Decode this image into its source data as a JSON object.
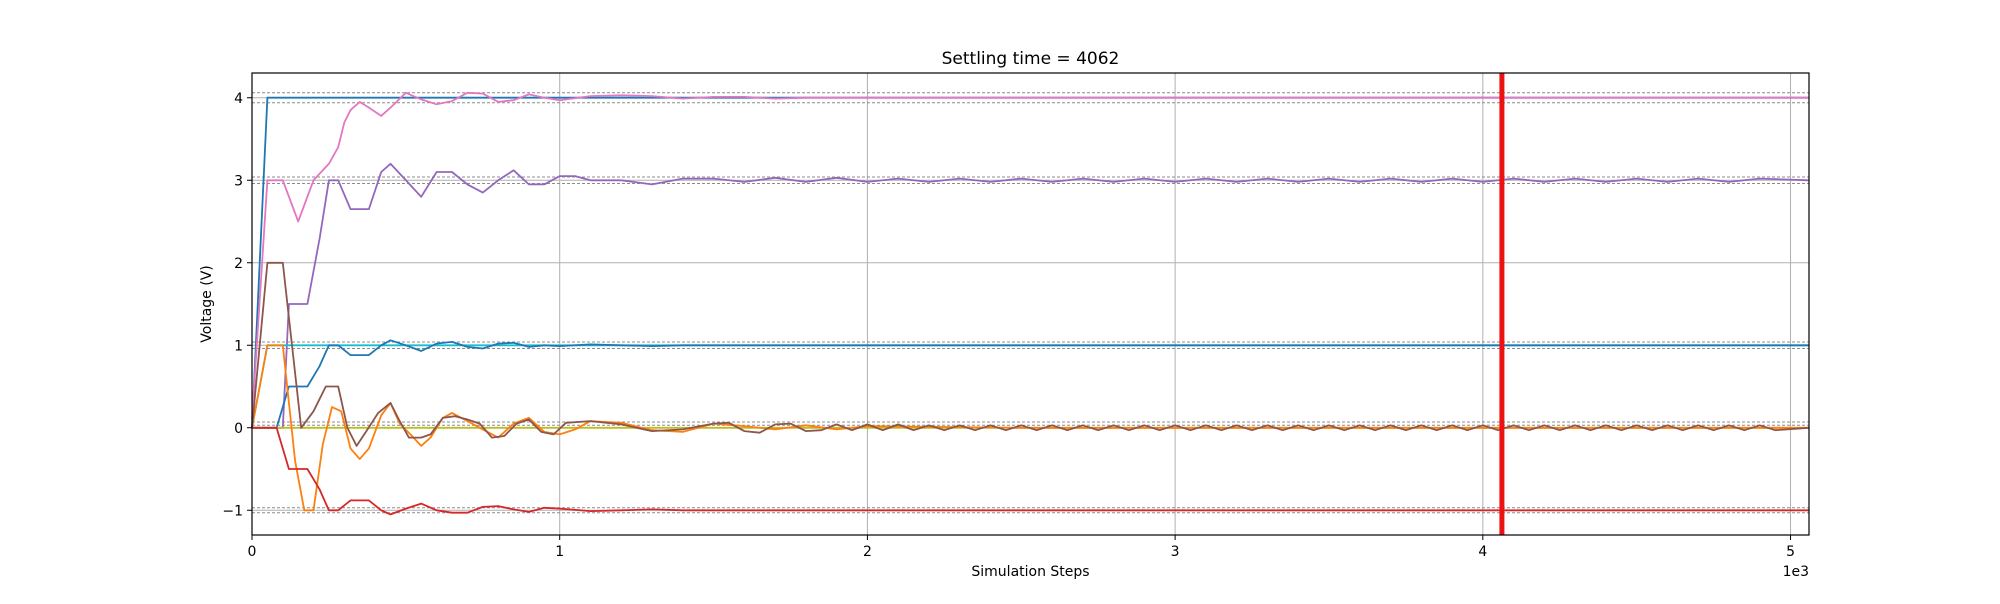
{
  "chart_data": {
    "type": "line",
    "title": "Settling time = 4062",
    "xlabel": "Simulation Steps",
    "ylabel": "Voltage (V)",
    "x_offset_label": "1e3",
    "xlim": [
      0,
      5.06
    ],
    "ylim": [
      -1.3,
      4.3
    ],
    "x_ticks": [
      0,
      1,
      2,
      3,
      4,
      5
    ],
    "x_tick_labels": [
      "0",
      "1",
      "2",
      "3",
      "4",
      "5"
    ],
    "y_ticks": [
      -1,
      0,
      1,
      2,
      3,
      4
    ],
    "y_tick_labels": [
      "−1",
      "0",
      "1",
      "2",
      "3",
      "4"
    ],
    "grid": true,
    "settling_time": 4.062,
    "settling_line_color": "#ee1111",
    "tolerance_lines": [
      -1.03,
      -0.97,
      0.03,
      0.07,
      0.96,
      1.04,
      2.96,
      3.04,
      3.94,
      4.06
    ],
    "series": [
      {
        "color": "#1f77b4",
        "x": [
          0,
          0.05,
          0.08,
          5.06
        ],
        "y": [
          0,
          4,
          4,
          4
        ]
      },
      {
        "color": "#e377c2",
        "x": [
          0,
          0.05,
          0.1,
          0.15,
          0.2,
          0.25,
          0.28,
          0.3,
          0.32,
          0.35,
          0.38,
          0.42,
          0.45,
          0.5,
          0.55,
          0.6,
          0.65,
          0.7,
          0.75,
          0.8,
          0.85,
          0.9,
          0.95,
          1.0,
          1.1,
          1.2,
          1.3,
          1.4,
          1.5,
          1.6,
          1.7,
          1.8,
          1.9,
          2.0,
          2.5,
          3.0,
          3.5,
          4.0,
          4.5,
          5.06
        ],
        "y": [
          0.1,
          3.0,
          3.0,
          2.5,
          3.0,
          3.2,
          3.4,
          3.7,
          3.85,
          3.95,
          3.88,
          3.78,
          3.88,
          4.06,
          3.98,
          3.92,
          3.96,
          4.06,
          4.05,
          3.95,
          3.97,
          4.04,
          4.0,
          3.97,
          4.02,
          4.03,
          4.02,
          3.99,
          4.01,
          4.01,
          3.99,
          4.0,
          4.0,
          4.0,
          4.0,
          4.0,
          4.0,
          4.0,
          4.0,
          4.0
        ]
      },
      {
        "color": "#9467bd",
        "x": [
          0,
          0.05,
          0.1,
          0.12,
          0.15,
          0.18,
          0.22,
          0.25,
          0.28,
          0.32,
          0.35,
          0.38,
          0.42,
          0.45,
          0.5,
          0.55,
          0.6,
          0.65,
          0.7,
          0.75,
          0.8,
          0.85,
          0.9,
          0.95,
          1.0,
          1.05,
          1.1,
          1.2,
          1.3,
          1.4,
          1.5,
          1.6,
          1.7,
          1.8,
          1.9,
          2.0,
          2.1,
          2.2,
          2.3,
          2.4,
          2.5,
          2.6,
          2.7,
          2.8,
          2.9,
          3.0,
          3.1,
          3.2,
          3.3,
          3.4,
          3.5,
          3.6,
          3.7,
          3.8,
          3.9,
          4.0,
          4.1,
          4.2,
          4.3,
          4.4,
          4.5,
          4.6,
          4.7,
          4.8,
          4.9,
          5.06
        ],
        "y": [
          0,
          0,
          0,
          1.5,
          1.5,
          1.5,
          2.3,
          3.0,
          3.0,
          2.65,
          2.65,
          2.65,
          3.1,
          3.2,
          3.0,
          2.8,
          3.1,
          3.1,
          2.95,
          2.85,
          3.0,
          3.12,
          2.95,
          2.95,
          3.05,
          3.05,
          3.0,
          3.0,
          2.95,
          3.02,
          3.02,
          2.98,
          3.03,
          2.98,
          3.03,
          2.98,
          3.02,
          2.98,
          3.02,
          2.98,
          3.02,
          2.98,
          3.02,
          2.98,
          3.02,
          2.98,
          3.02,
          2.98,
          3.02,
          2.98,
          3.02,
          2.98,
          3.02,
          2.98,
          3.02,
          2.98,
          3.02,
          2.98,
          3.02,
          2.98,
          3.02,
          2.98,
          3.02,
          2.98,
          3.02,
          3.0
        ]
      },
      {
        "color": "#17becf",
        "x": [
          0,
          0.05,
          0.08,
          5.06
        ],
        "y": [
          0,
          1,
          1,
          1
        ]
      },
      {
        "color": "#1f77b4",
        "x": [
          0,
          0.08,
          0.12,
          0.18,
          0.22,
          0.25,
          0.28,
          0.32,
          0.38,
          0.42,
          0.45,
          0.5,
          0.55,
          0.6,
          0.65,
          0.7,
          0.75,
          0.8,
          0.85,
          0.9,
          0.95,
          1.0,
          1.1,
          1.2,
          1.3,
          1.4,
          1.5,
          1.6,
          1.7,
          1.8,
          1.9,
          2.0,
          2.5,
          3.0,
          3.5,
          4.0,
          4.5,
          5.06
        ],
        "y": [
          0,
          0,
          0.5,
          0.5,
          0.75,
          1.0,
          1.0,
          0.88,
          0.88,
          1.0,
          1.06,
          1.0,
          0.93,
          1.02,
          1.04,
          0.98,
          0.96,
          1.02,
          1.03,
          0.98,
          1.0,
          0.99,
          1.01,
          1.0,
          0.99,
          1.0,
          1.0,
          1.0,
          1.0,
          1.0,
          1.0,
          1.0,
          1.0,
          1.0,
          1.0,
          1.0,
          1.0,
          1.0
        ]
      },
      {
        "color": "#bcbd22",
        "x": [
          0,
          5.06
        ],
        "y": [
          0,
          0
        ]
      },
      {
        "color": "#ff7f0e",
        "x": [
          0,
          0.05,
          0.1,
          0.14,
          0.17,
          0.2,
          0.23,
          0.26,
          0.29,
          0.32,
          0.35,
          0.38,
          0.42,
          0.45,
          0.48,
          0.52,
          0.55,
          0.58,
          0.62,
          0.65,
          0.7,
          0.75,
          0.8,
          0.85,
          0.9,
          0.95,
          1.0,
          1.05,
          1.1,
          1.2,
          1.3,
          1.4,
          1.5,
          1.6,
          1.7,
          1.8,
          1.9,
          2.0,
          2.5,
          3.0,
          3.5,
          4.0,
          4.5,
          5.06
        ],
        "y": [
          0,
          1.0,
          1.0,
          -0.4,
          -1.0,
          -1.0,
          -0.2,
          0.25,
          0.2,
          -0.25,
          -0.38,
          -0.25,
          0.15,
          0.3,
          0.05,
          -0.1,
          -0.22,
          -0.12,
          0.12,
          0.18,
          0.08,
          -0.02,
          -0.12,
          0.05,
          0.12,
          -0.05,
          -0.08,
          -0.02,
          0.08,
          0.06,
          -0.03,
          -0.05,
          0.05,
          0.02,
          -0.02,
          0.03,
          -0.02,
          0.02,
          0.0,
          0.0,
          0.0,
          0.0,
          0.0,
          0.0
        ]
      },
      {
        "color": "#8c564b",
        "x": [
          0,
          0.05,
          0.1,
          0.13,
          0.16,
          0.2,
          0.24,
          0.28,
          0.31,
          0.34,
          0.37,
          0.41,
          0.45,
          0.48,
          0.51,
          0.55,
          0.58,
          0.62,
          0.66,
          0.7,
          0.74,
          0.78,
          0.82,
          0.86,
          0.9,
          0.94,
          0.98,
          1.02,
          1.1,
          1.2,
          1.3,
          1.4,
          1.5,
          1.55,
          1.6,
          1.65,
          1.7,
          1.75,
          1.8,
          1.85,
          1.9,
          1.95,
          2.0,
          2.05,
          2.1,
          2.15,
          2.2,
          2.25,
          2.3,
          2.35,
          2.4,
          2.45,
          2.5,
          2.55,
          2.6,
          2.65,
          2.7,
          2.75,
          2.8,
          2.85,
          2.9,
          2.95,
          3.0,
          3.05,
          3.1,
          3.15,
          3.2,
          3.25,
          3.3,
          3.35,
          3.4,
          3.45,
          3.5,
          3.55,
          3.6,
          3.65,
          3.7,
          3.75,
          3.8,
          3.85,
          3.9,
          3.95,
          4.0,
          4.05,
          4.1,
          4.15,
          4.2,
          4.25,
          4.3,
          4.35,
          4.4,
          4.45,
          4.5,
          4.55,
          4.6,
          4.65,
          4.7,
          4.75,
          4.8,
          4.85,
          4.9,
          4.95,
          5.06
        ],
        "y": [
          0,
          2.0,
          2.0,
          1.0,
          0.0,
          0.2,
          0.5,
          0.5,
          0.0,
          -0.22,
          -0.05,
          0.18,
          0.3,
          0.08,
          -0.12,
          -0.12,
          -0.08,
          0.12,
          0.14,
          0.1,
          0.05,
          -0.12,
          -0.1,
          0.05,
          0.1,
          -0.05,
          -0.08,
          0.06,
          0.08,
          0.04,
          -0.04,
          -0.02,
          0.05,
          0.06,
          -0.04,
          -0.06,
          0.04,
          0.05,
          -0.04,
          -0.03,
          0.04,
          -0.03,
          0.04,
          -0.03,
          0.04,
          -0.03,
          0.03,
          -0.03,
          0.03,
          -0.03,
          0.03,
          -0.03,
          0.03,
          -0.03,
          0.03,
          -0.03,
          0.03,
          -0.03,
          0.03,
          -0.03,
          0.03,
          -0.03,
          0.03,
          -0.03,
          0.03,
          -0.03,
          0.03,
          -0.03,
          0.03,
          -0.03,
          0.03,
          -0.03,
          0.03,
          -0.03,
          0.03,
          -0.03,
          0.03,
          -0.03,
          0.03,
          -0.03,
          0.03,
          -0.03,
          0.03,
          -0.03,
          0.03,
          -0.03,
          0.03,
          -0.03,
          0.03,
          -0.03,
          0.03,
          -0.03,
          0.03,
          -0.03,
          0.03,
          -0.03,
          0.03,
          -0.03,
          0.03,
          -0.03,
          0.03,
          -0.03,
          0.0
        ]
      },
      {
        "color": "#d62728",
        "x": [
          0,
          0.08,
          0.12,
          0.18,
          0.22,
          0.25,
          0.28,
          0.32,
          0.38,
          0.42,
          0.45,
          0.5,
          0.55,
          0.6,
          0.65,
          0.7,
          0.75,
          0.8,
          0.85,
          0.9,
          0.95,
          1.0,
          1.1,
          1.2,
          1.3,
          1.4,
          1.5,
          1.6,
          1.7,
          1.8,
          1.9,
          2.0,
          2.5,
          3.0,
          3.5,
          4.0,
          4.5,
          5.06
        ],
        "y": [
          0,
          0,
          -0.5,
          -0.5,
          -0.75,
          -1.0,
          -1.0,
          -0.88,
          -0.88,
          -1.0,
          -1.05,
          -0.98,
          -0.92,
          -1.0,
          -1.03,
          -1.03,
          -0.96,
          -0.95,
          -0.99,
          -1.02,
          -0.97,
          -0.98,
          -1.01,
          -1.0,
          -0.99,
          -1.0,
          -1.0,
          -1.0,
          -1.0,
          -1.0,
          -1.0,
          -1.0,
          -1.0,
          -1.0,
          -1.0,
          -1.0,
          -1.0,
          -1.0
        ]
      }
    ]
  }
}
